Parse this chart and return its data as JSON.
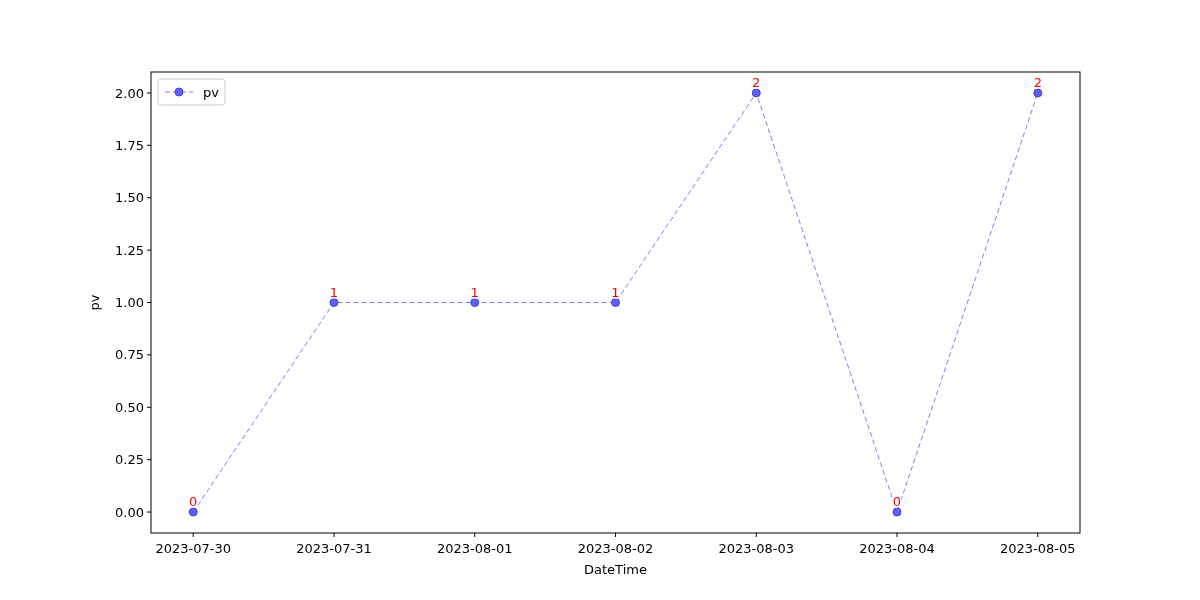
{
  "chart_data": {
    "type": "line",
    "xlabel": "DateTime",
    "ylabel": "pv",
    "categories": [
      "2023-07-30",
      "2023-07-31",
      "2023-08-01",
      "2023-08-02",
      "2023-08-03",
      "2023-08-04",
      "2023-08-05"
    ],
    "series": [
      {
        "name": "pv",
        "color": "#7f7fff",
        "values": [
          0,
          1,
          1,
          1,
          2,
          0,
          2
        ]
      }
    ],
    "ylim": [
      -0.1,
      2.1
    ],
    "yticks": [
      {
        "value": 0,
        "label": "0.00"
      },
      {
        "value": 0.25,
        "label": "0.25"
      },
      {
        "value": 0.5,
        "label": "0.50"
      },
      {
        "value": 0.75,
        "label": "0.75"
      },
      {
        "value": 1,
        "label": "1.00"
      },
      {
        "value": 1.25,
        "label": "1.25"
      },
      {
        "value": 1.5,
        "label": "1.50"
      },
      {
        "value": 1.75,
        "label": "1.75"
      },
      {
        "value": 2,
        "label": "2.00"
      }
    ],
    "marker": "circle",
    "line_style": "dashed",
    "legend": "top left",
    "grid": false,
    "data_labels": true
  }
}
